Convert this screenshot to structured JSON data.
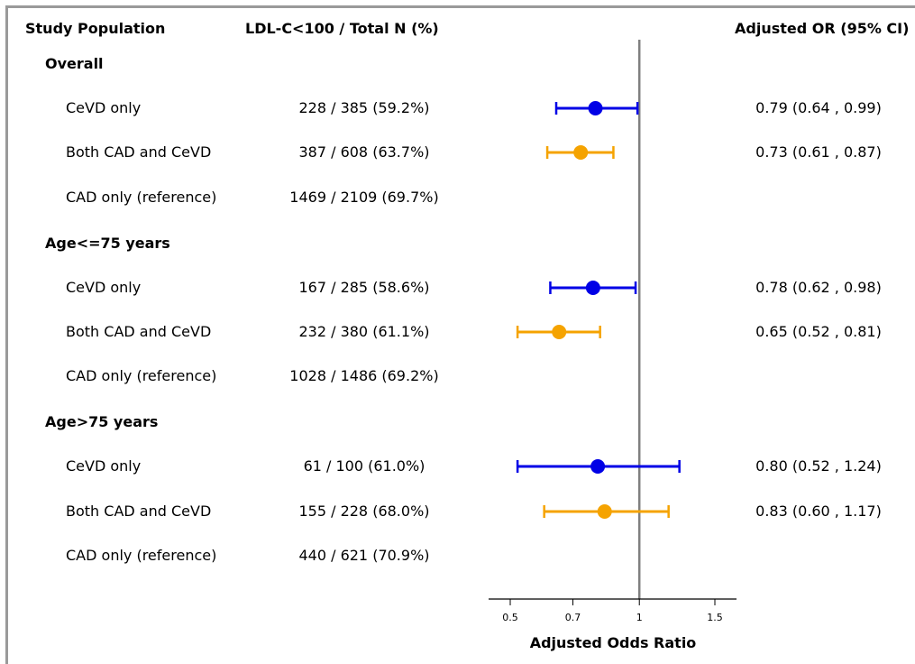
{
  "headers": {
    "population": "Study Population",
    "counts": "LDL-C<100 / Total N (%)",
    "or": "Adjusted OR (95% CI)"
  },
  "groups": [
    {
      "title": "Overall",
      "rows": [
        {
          "label": "CeVD only",
          "count": "228 / 385 (59.2%)",
          "or_text": "0.79 (0.64 , 0.99)"
        },
        {
          "label": "Both CAD and CeVD",
          "count": "387 / 608 (63.7%)",
          "or_text": "0.73 (0.61 , 0.87)"
        },
        {
          "label": "CAD only (reference)",
          "count": "1469 / 2109 (69.7%)",
          "or_text": ""
        }
      ]
    },
    {
      "title": "Age<=75 years",
      "rows": [
        {
          "label": "CeVD only",
          "count": "167 / 285 (58.6%)",
          "or_text": "0.78 (0.62 , 0.98)"
        },
        {
          "label": "Both CAD and CeVD",
          "count": "232 / 380 (61.1%)",
          "or_text": "0.65 (0.52 , 0.81)"
        },
        {
          "label": "CAD only (reference)",
          "count": "1028 / 1486 (69.2%)",
          "or_text": ""
        }
      ]
    },
    {
      "title": "Age>75 years",
      "rows": [
        {
          "label": "CeVD only",
          "count": "61 / 100 (61.0%)",
          "or_text": "0.80 (0.52 , 1.24)"
        },
        {
          "label": "Both CAD and CeVD",
          "count": "155 / 228 (68.0%)",
          "or_text": "0.83 (0.60 , 1.17)"
        },
        {
          "label": "CAD only (reference)",
          "count": "440 / 621 (70.9%)",
          "or_text": ""
        }
      ]
    }
  ],
  "chart_data": {
    "type": "scatter",
    "xlabel": "Adjusted Odds Ratio",
    "ylabel": "",
    "xscale": "log",
    "xlim": [
      0.45,
      1.65
    ],
    "xticks": [
      0.5,
      0.7,
      1,
      1.5
    ],
    "xtick_labels": [
      "0.5",
      "0.7",
      "1",
      "1.5"
    ],
    "reference_line": 1,
    "grid": false,
    "colors": {
      "CeVD only": "#0000e6",
      "Both CAD and CeVD": "#f5a300",
      "reference_line": "#808080"
    },
    "points": [
      {
        "group": "Overall",
        "row": "CeVD only",
        "or": 0.79,
        "lower": 0.64,
        "upper": 0.99
      },
      {
        "group": "Overall",
        "row": "Both CAD and CeVD",
        "or": 0.73,
        "lower": 0.61,
        "upper": 0.87
      },
      {
        "group": "Age<=75 years",
        "row": "CeVD only",
        "or": 0.78,
        "lower": 0.62,
        "upper": 0.98
      },
      {
        "group": "Age<=75 years",
        "row": "Both CAD and CeVD",
        "or": 0.65,
        "lower": 0.52,
        "upper": 0.81
      },
      {
        "group": "Age>75 years",
        "row": "CeVD only",
        "or": 0.8,
        "lower": 0.52,
        "upper": 1.24
      },
      {
        "group": "Age>75 years",
        "row": "Both CAD and CeVD",
        "or": 0.83,
        "lower": 0.6,
        "upper": 1.17
      }
    ]
  }
}
